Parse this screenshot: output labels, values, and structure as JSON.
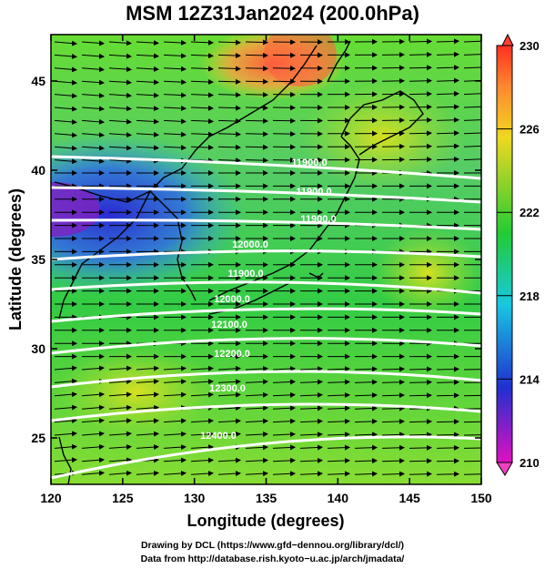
{
  "title": "MSM 12Z31Jan2024 (200.0hPa)",
  "xlabel": "Longitude (degrees)",
  "ylabel": "Latitude  (degrees)",
  "xticks": [
    "120",
    "125",
    "130",
    "135",
    "140",
    "145",
    "150"
  ],
  "yticks": [
    "25",
    "30",
    "35",
    "40",
    "45"
  ],
  "colorbar": {
    "labels": [
      "230",
      "226",
      "222",
      "218",
      "214",
      "210"
    ],
    "values": [
      230,
      226,
      222,
      218,
      214,
      210
    ],
    "colors": [
      "#ff5a3c",
      "#f0d820",
      "#22cc33",
      "#18c8e0",
      "#2030d0",
      "#c010c0"
    ]
  },
  "contours": [
    {
      "label": "11900.0",
      "value": 11900
    },
    {
      "label": "11900.0",
      "value": 11900
    },
    {
      "label": "11900.0",
      "value": 11900
    },
    {
      "label": "12000.0",
      "value": 12000
    },
    {
      "label": "11900.0",
      "value": 11900
    },
    {
      "label": "12000.0",
      "value": 12000
    },
    {
      "label": "12100.0",
      "value": 12100
    },
    {
      "label": "12200.0",
      "value": 12200
    },
    {
      "label": "12300.0",
      "value": 12300
    },
    {
      "label": "12400.0",
      "value": 12400
    }
  ],
  "credits": {
    "line1": "Drawing by DCL (https://www.gfd−dennou.org/library/dcl/)",
    "line2": "Data from http://database.rish.kyoto−u.ac.jp/arch/jmadata/"
  },
  "chart_data": {
    "type": "heatmap",
    "title": "MSM 12Z31Jan2024 (200.0hPa)",
    "xlabel": "Longitude (degrees)",
    "ylabel": "Latitude  (degrees)",
    "xlim": [
      120,
      150
    ],
    "ylim": [
      22.4,
      47.6
    ],
    "color_range": [
      210,
      230
    ],
    "overlays": [
      "wind vectors",
      "height contours",
      "coastlines"
    ]
  }
}
